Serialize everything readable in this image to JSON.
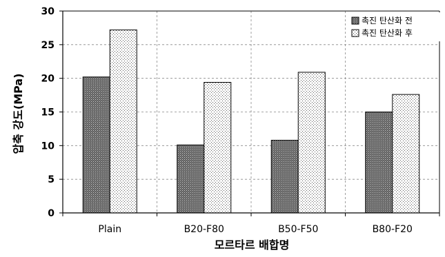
{
  "chart_data": {
    "type": "bar",
    "categories": [
      "Plain",
      "B20-F80",
      "B50-F50",
      "B80-F20"
    ],
    "series": [
      {
        "name": "촉진 탄산화 전",
        "values": [
          20.2,
          10.1,
          10.8,
          15.0
        ],
        "pattern": "dark-dotted"
      },
      {
        "name": "촉진 탄산화 후",
        "values": [
          27.2,
          19.4,
          20.9,
          17.6
        ],
        "pattern": "light-dotted"
      }
    ],
    "title": "",
    "xlabel": "모르타르 배합명",
    "ylabel": "압축 강도(MPa)",
    "ylim": [
      0,
      30
    ],
    "yticks": [
      0,
      5,
      10,
      15,
      20,
      25,
      30
    ],
    "grid": "dashed",
    "legend_position": "top-right",
    "colors": {
      "bar_before": "#7a7a7a",
      "bar_after": "#f5f5f5",
      "grid": "#888888",
      "axis": "#000000"
    }
  }
}
